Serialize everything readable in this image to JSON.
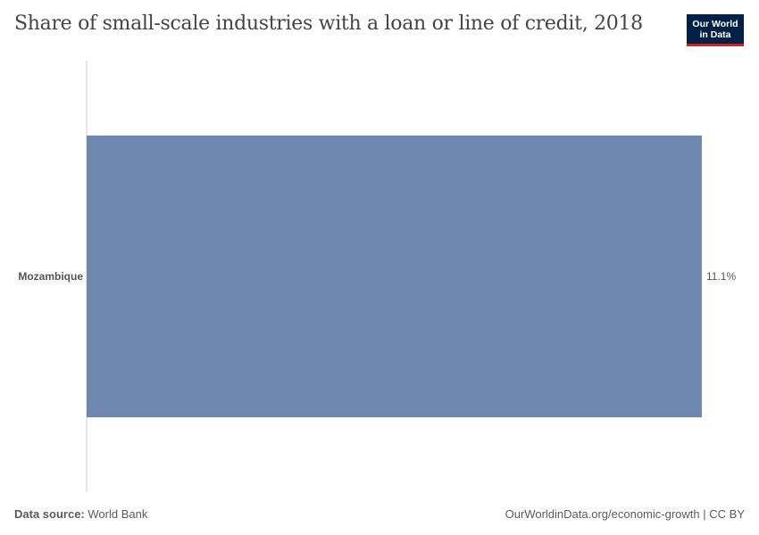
{
  "header": {
    "title": "Share of small-scale industries with a loan or line of credit, 2018"
  },
  "logo": {
    "line1": "Our World",
    "line2": "in Data"
  },
  "chart_data": {
    "type": "bar",
    "orientation": "horizontal",
    "categories": [
      "Mozambique"
    ],
    "values": [
      11.1
    ],
    "value_labels": [
      "11.1%"
    ],
    "unit": "%",
    "xlim": [
      0,
      11.1
    ],
    "grid": false,
    "bar_color": "#6f88b0"
  },
  "footer": {
    "source_label": "Data source:",
    "source_value": "World Bank",
    "link_text": "OurWorldinData.org/economic-growth",
    "separator": "|",
    "license": "CC BY"
  }
}
